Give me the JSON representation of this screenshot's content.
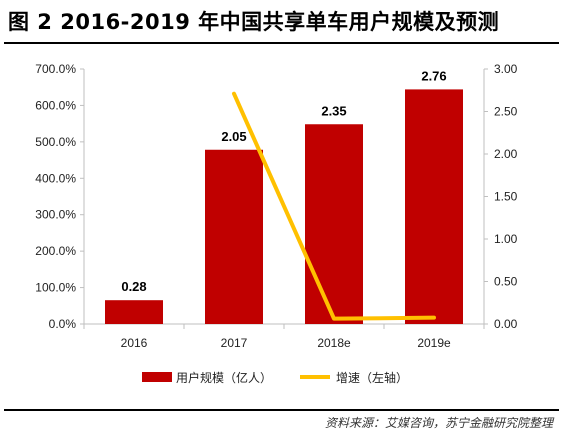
{
  "figure": {
    "title": "图 2  2016-2019 年中国共享单车用户规模及预测",
    "source": "资料来源：艾媒咨询，苏宁金融研究院整理"
  },
  "colors": {
    "bar": "#c00000",
    "line": "#ffc000",
    "axis": "#bfbfbf"
  },
  "chart_data": {
    "type": "bar",
    "categories": [
      "2016",
      "2017",
      "2018e",
      "2019e"
    ],
    "series": [
      {
        "name": "用户规模（亿人）",
        "type": "bar",
        "axis": "right",
        "values": [
          0.28,
          2.05,
          2.35,
          2.76
        ],
        "labels": [
          "0.28",
          "2.05",
          "2.35",
          "2.76"
        ]
      },
      {
        "name": "增速（左轴）",
        "type": "line",
        "axis": "left",
        "values": [
          null,
          632.1,
          14.6,
          17.4
        ]
      }
    ],
    "left_axis": {
      "min": 0,
      "max": 700,
      "step": 100,
      "tick_labels": [
        "0.0%",
        "100.0%",
        "200.0%",
        "300.0%",
        "400.0%",
        "500.0%",
        "600.0%",
        "700.0%"
      ]
    },
    "right_axis": {
      "min": 0,
      "max": 3,
      "step": 0.5,
      "tick_labels": [
        "0.00",
        "0.50",
        "1.00",
        "1.50",
        "2.00",
        "2.50",
        "3.00"
      ]
    },
    "grid": false,
    "legend": "bottom"
  }
}
